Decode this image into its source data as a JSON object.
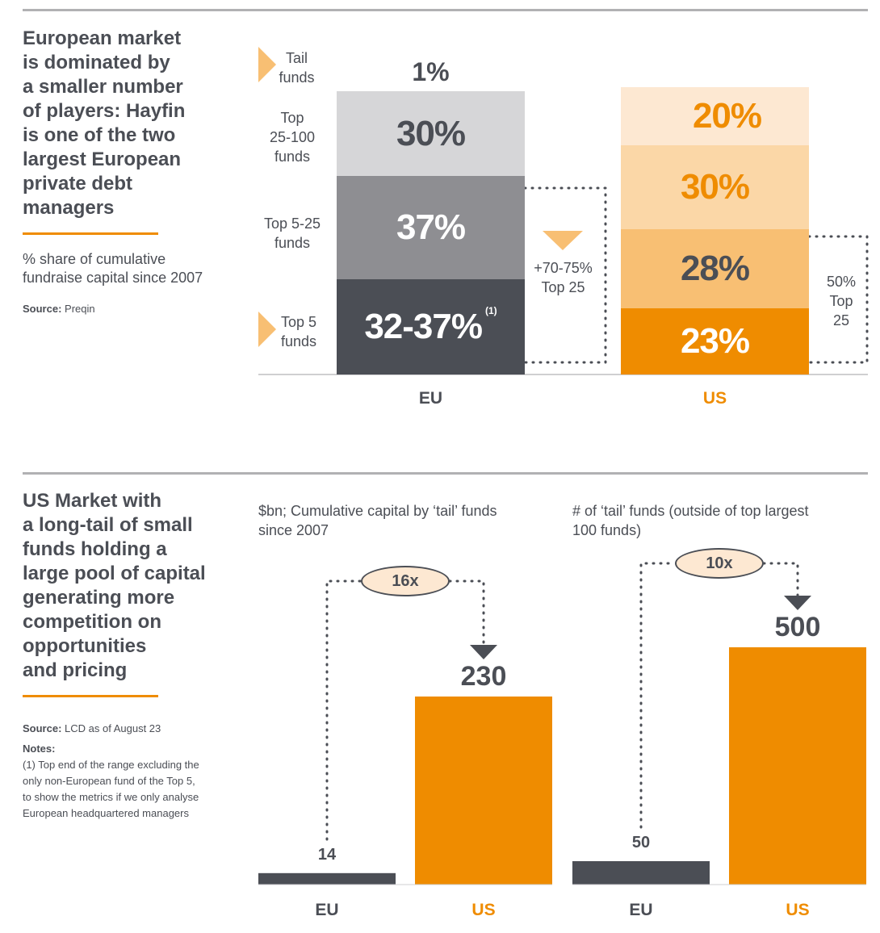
{
  "top": {
    "heading_lines": [
      "European market",
      "is dominated by",
      "a smaller number",
      "of players: Hayfin",
      "is one of the two",
      "largest European",
      "private debt",
      "managers"
    ],
    "subtitle_lines": [
      "% share of cumulative",
      "fundraise capital since 2007"
    ],
    "source_label": "Source:",
    "source_value": "Preqin",
    "segment_labels": {
      "tail": "Tail\nfunds",
      "top25_100": "Top\n25-100\nfunds",
      "top5_25": "Top 5-25\nfunds",
      "top5": "Top 5\nfunds"
    },
    "eu_bracket_label": "+70-75%\nTop 25",
    "us_bracket_label": "50%\nTop\n25",
    "footnote_marker": "(1)"
  },
  "bottom": {
    "heading_lines": [
      "US Market with",
      "a long-tail of small",
      "funds holding a",
      "large pool of capital",
      "generating more",
      "competition on",
      "opportunities",
      "and pricing"
    ],
    "source_label": "Source:",
    "source_value": "LCD as of August 23",
    "notes_label": "Notes:",
    "notes_lines": [
      "(1) Top end of the range excluding the",
      "only non-European fund of the Top 5,",
      "to show the metrics if we only analyse",
      "European headquartered managers"
    ]
  },
  "colors": {
    "eu_dark": "#4b4e55",
    "eu_mid": "#8e8e92",
    "eu_light": "#d6d6d8",
    "us_dark": "#ef8c00",
    "us_mid": "#f8bf73",
    "us_light": "#fbd7a7",
    "us_lightest": "#fde8d2",
    "accent": "#ef8c00"
  },
  "chart_data": [
    {
      "type": "bar",
      "subtype": "stacked",
      "categories": [
        "EU",
        "US"
      ],
      "segments_bottom_to_top": [
        {
          "name": "Top 5 funds",
          "values": [
            35,
            23
          ],
          "labels": [
            "32-37%",
            "23%"
          ]
        },
        {
          "name": "Top 5-25 funds",
          "values": [
            37,
            28
          ],
          "labels": [
            "37%",
            "28%"
          ]
        },
        {
          "name": "Top 25-100 funds",
          "values": [
            30,
            30
          ],
          "labels": [
            "30%",
            "30%"
          ]
        },
        {
          "name": "Tail funds",
          "values": [
            1,
            20
          ],
          "labels": [
            "1%",
            "20%"
          ]
        }
      ],
      "annotations": [
        "+70-75% Top 25",
        "50% Top 25"
      ]
    },
    {
      "type": "bar",
      "title": "$bn; Cumulative capital by ‘tail’ funds\nsince 2007",
      "categories": [
        "EU",
        "US"
      ],
      "values": [
        14,
        230
      ],
      "multiplier_label": "16x"
    },
    {
      "type": "bar",
      "title": "# of ‘tail’ funds (outside of top largest\n100 funds)",
      "categories": [
        "EU",
        "US"
      ],
      "values": [
        50,
        500
      ],
      "multiplier_label": "10x"
    }
  ]
}
